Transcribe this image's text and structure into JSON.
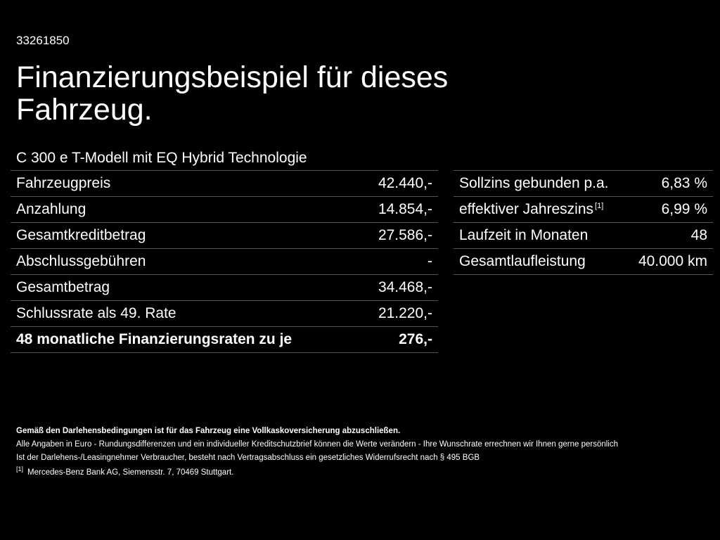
{
  "header": {
    "ref_number": "33261850",
    "title": "Finanzierungsbeispiel für dieses Fahrzeug.",
    "model": "C 300 e T-Modell mit EQ Hybrid Technologie"
  },
  "left_table": [
    {
      "label": "Fahrzeugpreis",
      "value": "42.440,-"
    },
    {
      "label": "Anzahlung",
      "value": "14.854,-"
    },
    {
      "label": "Gesamtkreditbetrag",
      "value": "27.586,-"
    },
    {
      "label": "Abschlussgebühren",
      "value": "-"
    },
    {
      "label": "Gesamtbetrag",
      "value": "34.468,-"
    },
    {
      "label": "Schlussrate als 49. Rate",
      "value": "21.220,-"
    },
    {
      "label": "48 monatliche Finanzierungsraten zu je",
      "value": "276,-"
    }
  ],
  "right_table": [
    {
      "label": "Sollzins gebunden p.a.",
      "value": "6,83 %"
    },
    {
      "label": "effektiver Jahreszins",
      "footnote": "[1]",
      "value": "6,99 %"
    },
    {
      "label": "Laufzeit in Monaten",
      "value": "48"
    },
    {
      "label": "Gesamtlaufleistung",
      "value": "40.000 km"
    }
  ],
  "footer": {
    "line1": "Gemäß den Darlehensbedingungen ist für das Fahrzeug eine Vollkaskoversicherung abzuschließen.",
    "line2": "Alle Angaben in Euro - Rundungsdifferenzen und ein individueller Kreditschutzbrief können die Werte verändern - Ihre Wunschrate errechnen wir Ihnen gerne persönlich",
    "line3": "Ist der Darlehens-/Leasingnehmer Verbraucher, besteht nach Vertragsabschluss ein gesetzliches Widerrufsrecht nach § 495 BGB",
    "footnote_marker": "[1]",
    "footnote_text": "Mercedes-Benz Bank AG, Siemensstr. 7, 70469 Stuttgart."
  }
}
